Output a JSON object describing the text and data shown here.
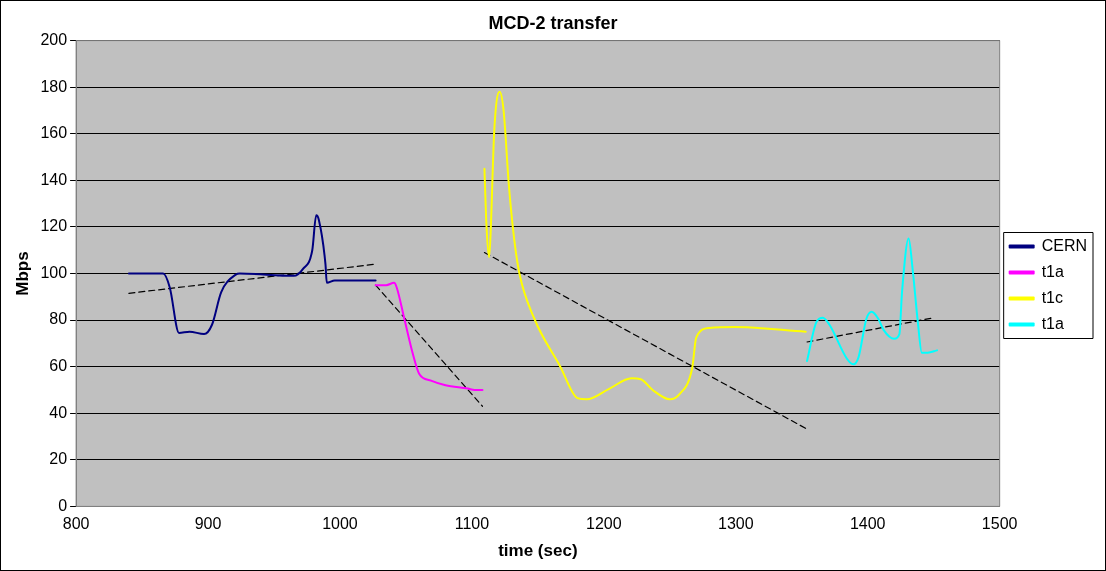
{
  "chart_data": {
    "type": "line",
    "title": "MCD-2 transfer",
    "xlabel": "time (sec)",
    "ylabel": "Mbps",
    "xlim": [
      800,
      1500
    ],
    "xticks": [
      800,
      900,
      1000,
      1100,
      1200,
      1300,
      1400,
      1500
    ],
    "ylim": [
      0,
      200
    ],
    "yticks": [
      0,
      20,
      40,
      60,
      80,
      100,
      120,
      140,
      160,
      180,
      200
    ],
    "grid": "y",
    "legend": "right",
    "marker": "none",
    "line_style": "solid",
    "series": [
      {
        "name": "CERN",
        "color": "#000080",
        "x": [
          840,
          866,
          871,
          878,
          886,
          897,
          903,
          910,
          921,
          924,
          965,
          972,
          979,
          982,
          984,
          989,
          990,
          996,
          1027
        ],
        "values": [
          100,
          100,
          94,
          74.5,
          75,
          74,
          78,
          92,
          99.5,
          100,
          99,
          102,
          110,
          125,
          123,
          104,
          96,
          97,
          97
        ]
      },
      {
        "name": "t1a",
        "color": "#ff00ff",
        "x": [
          1027,
          1035,
          1041,
          1043,
          1049,
          1055,
          1060,
          1069,
          1080,
          1097,
          1102,
          1108
        ],
        "values": [
          95,
          95,
          96,
          94,
          80,
          66,
          57,
          54,
          52,
          50.6,
          50,
          50
        ]
      },
      {
        "name": "t1c",
        "color": "#ffff00",
        "x": [
          1109.5,
          1111,
          1113,
          1114,
          1117,
          1121,
          1124,
          1128,
          1132,
          1136,
          1147,
          1167,
          1180,
          1187,
          1204,
          1221,
          1228,
          1237,
          1250,
          1257,
          1267,
          1270,
          1280,
          1299,
          1353
        ],
        "values": [
          145,
          121,
          107,
          115,
          162,
          178,
          170,
          138,
          115,
          100,
          81,
          60,
          46.5,
          46,
          50.5,
          55,
          54.6,
          50,
          46,
          48,
          59.5,
          72.5,
          76.6,
          77,
          75
        ]
      },
      {
        "name": "t1a",
        "color": "#00ffff",
        "x": [
          1354,
          1361,
          1366,
          1371,
          1384,
          1389,
          1393,
          1399,
          1403,
          1408,
          1412,
          1420,
          1424,
          1426,
          1431,
          1434,
          1438,
          1441,
          1445.5,
          1452.5
        ],
        "values": [
          62.4,
          79,
          81,
          78,
          63.6,
          61,
          64,
          80.6,
          83.6,
          80.6,
          75.8,
          72,
          74,
          92,
          115,
          102,
          79,
          66,
          66,
          67
        ]
      },
      {
        "type": "line",
        "color": "#000000",
        "line_style": "dashed",
        "x": [
          840,
          1027
        ],
        "values": [
          91.5,
          104
        ]
      },
      {
        "type": "line",
        "color": "#000000",
        "line_style": "dashed",
        "x": [
          1027,
          1108
        ],
        "values": [
          95,
          43
        ]
      },
      {
        "type": "line",
        "color": "#000000",
        "line_style": "dashed",
        "x": [
          1109.5,
          1353
        ],
        "values": [
          109,
          33.5
        ]
      },
      {
        "type": "line",
        "color": "#000000",
        "line_style": "dashed",
        "x": [
          1354,
          1450
        ],
        "values": [
          70.6,
          81
        ]
      }
    ]
  }
}
